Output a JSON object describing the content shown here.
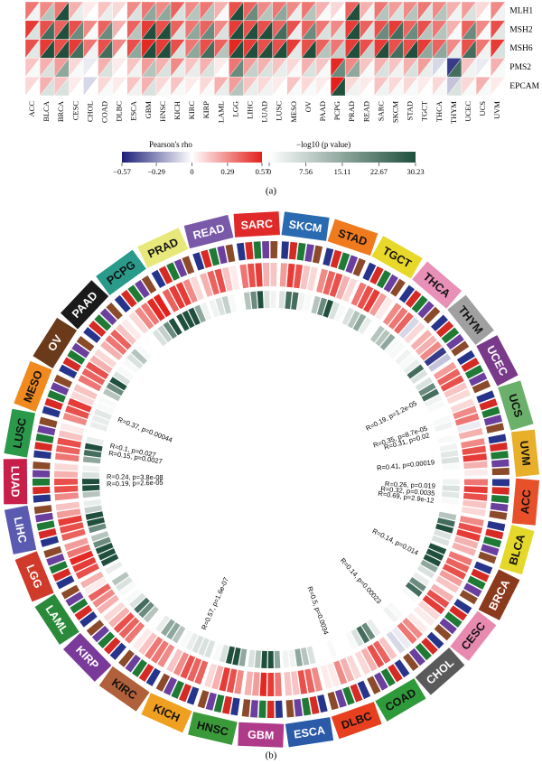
{
  "chart_data": [
    {
      "type": "heatmap",
      "panel_label": "(a)",
      "categories": [
        "ACC",
        "BLCA",
        "BRCA",
        "CESC",
        "CHOL",
        "COAD",
        "DLBC",
        "ESCA",
        "GBM",
        "HNSC",
        "KICH",
        "KIRC",
        "KIRP",
        "LAML",
        "LGG",
        "LIHC",
        "LUAD",
        "LUSC",
        "MESO",
        "OV",
        "PAAD",
        "PCPG",
        "PRAD",
        "READ",
        "SARC",
        "SKCM",
        "STAD",
        "TGCT",
        "THCA",
        "THYM",
        "UCEC",
        "UCS",
        "UVM"
      ],
      "rows": [
        "MLH1",
        "MSH2",
        "MSH6",
        "PMS2",
        "EPCAM"
      ],
      "rho": [
        [
          0.35,
          0.3,
          0.35,
          0.2,
          0.05,
          0.15,
          0.1,
          0.3,
          0.35,
          0.3,
          0.4,
          0.3,
          0.35,
          0.2,
          0.45,
          0.4,
          0.3,
          0.35,
          0.3,
          0.35,
          0.2,
          0.1,
          0.4,
          0.2,
          0.35,
          0.25,
          0.3,
          0.35,
          0.3,
          0.2,
          0.25,
          0.1,
          0.3
        ],
        [
          0.5,
          0.45,
          0.4,
          0.45,
          0.3,
          0.4,
          0.2,
          0.4,
          0.5,
          0.45,
          0.4,
          0.35,
          0.4,
          0.3,
          0.5,
          0.45,
          0.45,
          0.4,
          0.45,
          0.4,
          0.35,
          0.3,
          0.5,
          0.4,
          0.45,
          0.5,
          0.4,
          0.45,
          0.35,
          0.2,
          0.4,
          0.3,
          0.45
        ],
        [
          0.45,
          0.5,
          0.45,
          0.5,
          0.35,
          0.45,
          0.3,
          0.45,
          0.55,
          0.5,
          0.45,
          0.35,
          0.45,
          0.4,
          0.55,
          0.5,
          0.45,
          0.45,
          0.5,
          0.45,
          0.4,
          0.35,
          0.5,
          0.45,
          0.5,
          0.45,
          0.45,
          0.5,
          0.4,
          0.3,
          0.45,
          0.35,
          0.5
        ],
        [
          0.15,
          0.2,
          0.25,
          0.1,
          -0.05,
          0.2,
          0.05,
          0.15,
          0.25,
          0.2,
          0.3,
          0.15,
          0.2,
          0.05,
          0.35,
          0.25,
          0.2,
          0.15,
          0.1,
          0.2,
          0.15,
          0.55,
          0.3,
          0.15,
          0.2,
          0.15,
          0.2,
          0.25,
          -0.1,
          -0.5,
          0.15,
          -0.05,
          0.2
        ],
        [
          0.1,
          0.2,
          0.15,
          0.05,
          -0.1,
          0.1,
          0.05,
          0.15,
          0.2,
          0.1,
          0.15,
          0.05,
          0.1,
          0.2,
          0.25,
          0.15,
          0.1,
          0.05,
          0.15,
          0.1,
          0.05,
          0.57,
          0.1,
          0.05,
          0.15,
          0.1,
          0.1,
          0.05,
          0.1,
          -0.15,
          0.1,
          0.2,
          0.05
        ]
      ],
      "neglog10p": [
        [
          2,
          10,
          30,
          3,
          0,
          3,
          0,
          5,
          15,
          15,
          5,
          10,
          10,
          1,
          30,
          20,
          10,
          15,
          3,
          10,
          1,
          0,
          30,
          2,
          10,
          5,
          10,
          5,
          10,
          2,
          5,
          0,
          2
        ],
        [
          5,
          25,
          30,
          20,
          1,
          20,
          0,
          10,
          30,
          30,
          5,
          15,
          20,
          5,
          30,
          30,
          30,
          25,
          3,
          20,
          5,
          5,
          30,
          5,
          20,
          25,
          20,
          10,
          10,
          1,
          20,
          1,
          4
        ],
        [
          4,
          30,
          30,
          25,
          2,
          25,
          1,
          15,
          30,
          30,
          5,
          15,
          25,
          10,
          30,
          30,
          30,
          30,
          4,
          30,
          10,
          8,
          30,
          8,
          30,
          25,
          30,
          15,
          15,
          3,
          25,
          2,
          5
        ],
        [
          1,
          5,
          15,
          1,
          0,
          5,
          0,
          2,
          10,
          5,
          3,
          3,
          5,
          0,
          20,
          8,
          5,
          3,
          1,
          5,
          1,
          20,
          15,
          1,
          5,
          2,
          5,
          3,
          1,
          25,
          2,
          0,
          1
        ],
        [
          0,
          5,
          5,
          0,
          0,
          1,
          0,
          2,
          5,
          1,
          1,
          0,
          1,
          3,
          10,
          3,
          2,
          0,
          1,
          1,
          0,
          30,
          2,
          0,
          2,
          1,
          1,
          0,
          1,
          5,
          1,
          1,
          0
        ]
      ],
      "rho_title": "Pearson's rho",
      "rho_lim": [
        -0.57,
        0.57
      ],
      "rho_ticks": [
        {
          "value": -0.57,
          "label": "−0.57"
        },
        {
          "value": -0.29,
          "label": "−0.29"
        },
        0,
        0.29,
        0.57
      ],
      "rho_colors": [
        "#1c1f78",
        "#ffffff",
        "#e3201b"
      ],
      "p_title": "−log10 (p value)",
      "p_lim": [
        0,
        30.23
      ],
      "p_ticks": [
        0,
        7.56,
        15.11,
        22.67,
        30.23
      ],
      "p_colors": [
        "#ffffff",
        "#1e4f3c"
      ]
    },
    {
      "type": "circos",
      "panel_label": "(b)",
      "sector_colors": [
        "#e8502a",
        "#e4d82a",
        "#8b3a1e",
        "#e88ab0",
        "#5a5a5a",
        "#2f9a3a",
        "#e8401e",
        "#2a5aa8",
        "#b03a8a",
        "#3a9a3a",
        "#f0a020",
        "#b0603a",
        "#7a3a9a",
        "#2a8a3a",
        "#d03a2a",
        "#5a5ab0",
        "#c81e4a",
        "#2a9a4a",
        "#f08a1e",
        "#6a3a1a",
        "#1a1a1a",
        "#2a9a8a",
        "#e8e87a",
        "#7a5aa8",
        "#e02a2a",
        "#2a6ab0",
        "#f07a1e",
        "#e8d82a",
        "#e890b8",
        "#a0a0a0",
        "#7a3a8a",
        "#6ab06a",
        "#e8b02a"
      ],
      "gene_colors": [
        "#27348b",
        "#d62a24",
        "#1f7a35",
        "#6a3f9e",
        "#8b4a2a"
      ],
      "annotations": [
        {
          "category": "UCEC",
          "text": "R=0.19, p=1.2e-05"
        },
        {
          "category": "UCS",
          "text": "R=0.35, p=8.7e-05"
        },
        {
          "category": "UCS",
          "text": "R=0.31, p=0.02"
        },
        {
          "category": "UVM",
          "text": "R=0.41, p=0.00019"
        },
        {
          "category": "ACC",
          "text": "R=0.26, p=0.019"
        },
        {
          "category": "ACC",
          "text": "R=0.32, p=0.0035"
        },
        {
          "category": "ACC",
          "text": "R=0.69, p=2.9e-12"
        },
        {
          "category": "BRCA",
          "text": "R=0.14, p=0.014"
        },
        {
          "category": "CHOL",
          "text": "R=0.14, p=0.00023"
        },
        {
          "category": "DLBC",
          "text": "R=0.5, p=0.0034"
        },
        {
          "category": "KICH",
          "text": "R=0.57, p=1.6e-07"
        },
        {
          "category": "LUAD",
          "text": "R=0.19, p=2.6e-05"
        },
        {
          "category": "LUAD",
          "text": "R=0.24, p=3.8e-08"
        },
        {
          "category": "LUSC",
          "text": "R=0.15, p=0.0027"
        },
        {
          "category": "LUSC",
          "text": "R=0.1, p=0.027"
        },
        {
          "category": "MESO",
          "text": "R=0.37, p=0.00044"
        }
      ]
    }
  ]
}
